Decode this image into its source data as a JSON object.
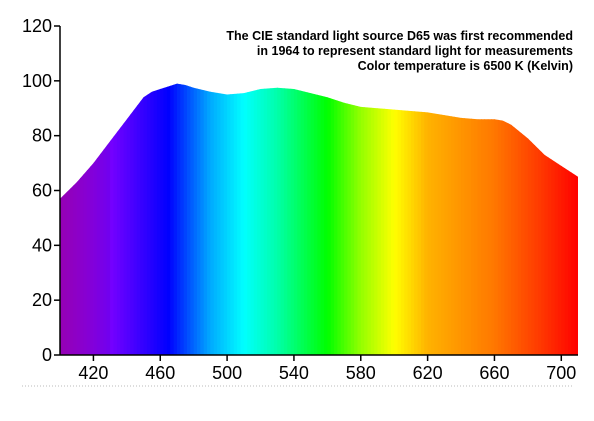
{
  "chart_data": {
    "type": "area",
    "title": "",
    "xlabel": "",
    "ylabel": "",
    "xlim": [
      400,
      710
    ],
    "ylim": [
      0,
      120
    ],
    "x_ticks": [
      420,
      460,
      500,
      540,
      580,
      620,
      660,
      700
    ],
    "y_ticks": [
      0,
      20,
      40,
      60,
      80,
      100,
      120
    ],
    "grid": false,
    "legend": "none",
    "fill": "visible-spectrum gradient (violet to red)",
    "series": [
      {
        "x": [
          400,
          410,
          420,
          430,
          440,
          450,
          455,
          460,
          465,
          470,
          475,
          480,
          490,
          500,
          510,
          520,
          530,
          540,
          550,
          560,
          570,
          580,
          590,
          600,
          610,
          620,
          630,
          640,
          650,
          660,
          665,
          670,
          680,
          690,
          700,
          710
        ],
        "values": [
          57,
          63,
          70,
          78,
          86,
          94,
          96,
          97,
          98,
          99,
          98.5,
          97.5,
          96,
          95,
          95.5,
          97,
          97.5,
          97,
          95.5,
          94,
          92,
          90.5,
          90,
          89.5,
          89,
          88.5,
          87.5,
          86.5,
          86,
          86,
          85.5,
          84,
          79,
          73,
          69,
          65
        ]
      }
    ],
    "annotation": [
      "The CIE standard light source D65 was first recommended",
      "in 1964 to represent standard light for measurements",
      "Color temperature is 6500 K (Kelvin)"
    ]
  }
}
